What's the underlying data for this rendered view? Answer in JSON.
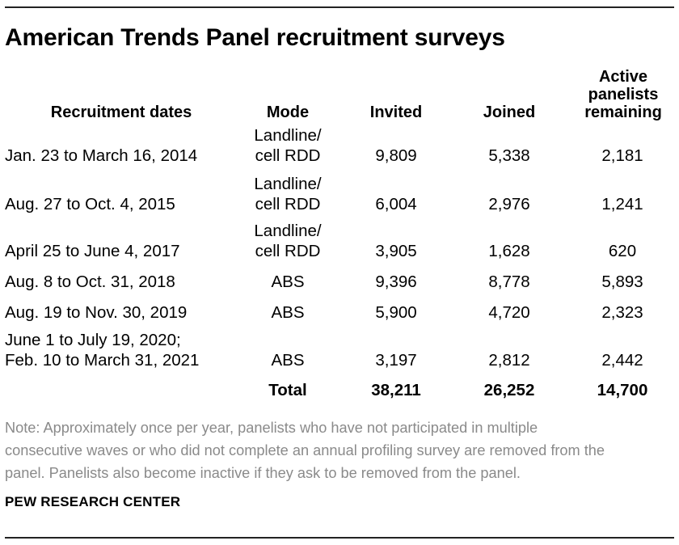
{
  "title": "American Trends Panel recruitment surveys",
  "headers": {
    "dates": "Recruitment dates",
    "mode": "Mode",
    "invited": "Invited",
    "joined": "Joined",
    "active_1": "Active",
    "active_2": "panelists",
    "active_3": "remaining"
  },
  "rows": [
    {
      "dates_1": "Jan. 23 to March 16, 2014",
      "dates_2": "",
      "mode_1": "Landline/",
      "mode_2": "cell RDD",
      "invited": "9,809",
      "joined": "5,338",
      "active": "2,181"
    },
    {
      "dates_1": "Aug. 27 to Oct. 4, 2015",
      "dates_2": "",
      "mode_1": "Landline/",
      "mode_2": "cell RDD",
      "invited": "6,004",
      "joined": "2,976",
      "active": "1,241"
    },
    {
      "dates_1": "April 25 to June 4, 2017",
      "dates_2": "",
      "mode_1": "Landline/",
      "mode_2": "cell RDD",
      "invited": "3,905",
      "joined": "1,628",
      "active": "620"
    },
    {
      "dates_1": "Aug. 8 to Oct. 31, 2018",
      "dates_2": "",
      "mode_1": "",
      "mode_2": "ABS",
      "invited": "9,396",
      "joined": "8,778",
      "active": "5,893"
    },
    {
      "dates_1": "Aug. 19 to Nov. 30, 2019",
      "dates_2": "",
      "mode_1": "",
      "mode_2": "ABS",
      "invited": "5,900",
      "joined": "4,720",
      "active": "2,323"
    },
    {
      "dates_1": "June 1 to July 19, 2020;",
      "dates_2": "Feb. 10 to March 31, 2021",
      "mode_1": "",
      "mode_2": "ABS",
      "invited": "3,197",
      "joined": "2,812",
      "active": "2,442"
    }
  ],
  "total": {
    "label": "Total",
    "invited": "38,211",
    "joined": "26,252",
    "active": "14,700"
  },
  "note_lines": [
    "Note: Approximately once per year, panelists who have not participated in multiple",
    "consecutive waves or who did not complete an annual profiling survey are removed from the",
    "panel. Panelists also become inactive if they ask to be removed from the panel."
  ],
  "source": "PEW RESEARCH CENTER"
}
